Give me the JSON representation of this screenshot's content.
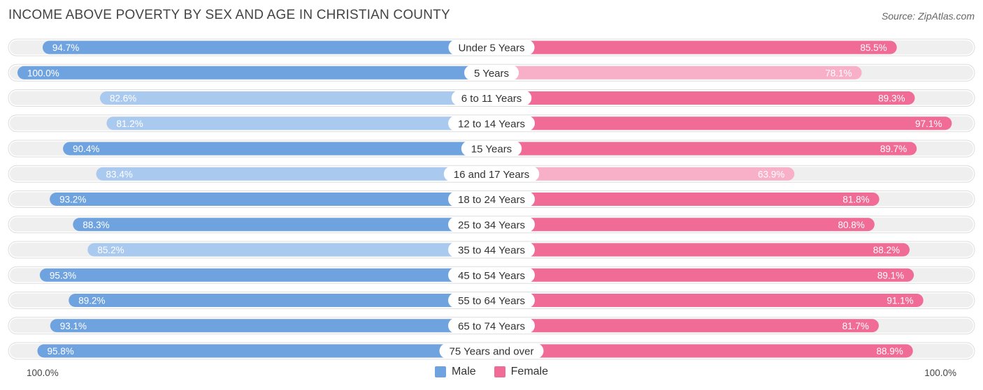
{
  "title": "INCOME ABOVE POVERTY BY SEX AND AGE IN CHRISTIAN COUNTY",
  "source": "Source: ZipAtlas.com",
  "axis": {
    "left_label": "100.0%",
    "right_label": "100.0%"
  },
  "legend": {
    "male_label": "Male",
    "female_label": "Female",
    "male_color": "#6fa3e0",
    "female_color": "#f06b96"
  },
  "colors": {
    "male_strong": "#6fa3e0",
    "male_light": "#aac9ef",
    "female_strong": "#f06b96",
    "female_light": "#f7b0c8",
    "track": "#efefef"
  },
  "chart_data": {
    "type": "bar",
    "orientation": "diverging-horizontal",
    "title": "INCOME ABOVE POVERTY BY SEX AND AGE IN CHRISTIAN COUNTY",
    "xlim": [
      0,
      100
    ],
    "categories": [
      "Under 5 Years",
      "5 Years",
      "6 to 11 Years",
      "12 to 14 Years",
      "15 Years",
      "16 and 17 Years",
      "18 to 24 Years",
      "25 to 34 Years",
      "35 to 44 Years",
      "45 to 54 Years",
      "55 to 64 Years",
      "65 to 74 Years",
      "75 Years and over"
    ],
    "series": [
      {
        "name": "Male",
        "values": [
          94.7,
          100.0,
          82.6,
          81.2,
          90.4,
          83.4,
          93.2,
          88.3,
          85.2,
          95.3,
          89.2,
          93.1,
          95.8
        ],
        "labels": [
          "94.7%",
          "100.0%",
          "82.6%",
          "81.2%",
          "90.4%",
          "83.4%",
          "93.2%",
          "88.3%",
          "85.2%",
          "95.3%",
          "89.2%",
          "93.1%",
          "95.8%"
        ]
      },
      {
        "name": "Female",
        "values": [
          85.5,
          78.1,
          89.3,
          97.1,
          89.7,
          63.9,
          81.8,
          80.8,
          88.2,
          89.1,
          91.1,
          81.7,
          88.9
        ],
        "labels": [
          "85.5%",
          "78.1%",
          "89.3%",
          "97.1%",
          "89.7%",
          "63.9%",
          "81.8%",
          "80.8%",
          "88.2%",
          "89.1%",
          "91.1%",
          "81.7%",
          "88.9%"
        ]
      }
    ],
    "legend_position": "bottom-center"
  }
}
